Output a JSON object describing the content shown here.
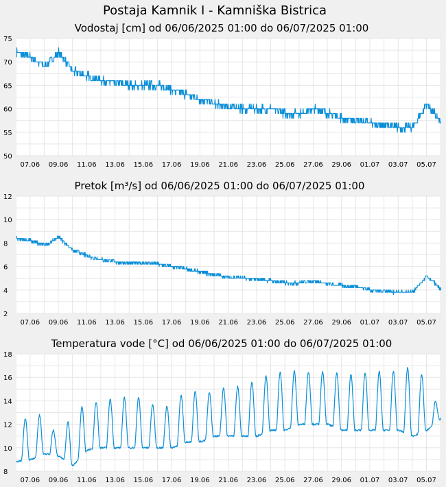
{
  "title": "Postaja Kamnik I - Kamniška Bistrica",
  "colors": {
    "background": "#f0f0f0",
    "plot_bg": "#ffffff",
    "line": "#0a8ed8",
    "grid": "#e6e6e6"
  },
  "chart_data": [
    {
      "type": "line",
      "title": "Vodostaj [cm] od 06/06/2025 01:00 do 06/07/2025 01:00",
      "x_tick_labels": [
        "07.06",
        "09.06",
        "11.06",
        "13.06",
        "15.06",
        "17.06",
        "19.06",
        "21.06",
        "23.06",
        "25.06",
        "27.06",
        "29.06",
        "01.07",
        "03.07",
        "05.07"
      ],
      "x": [
        "06.06",
        "07.06",
        "08.06",
        "09.06",
        "10.06",
        "11.06",
        "12.06",
        "13.06",
        "14.06",
        "15.06",
        "16.06",
        "17.06",
        "18.06",
        "19.06",
        "20.06",
        "21.06",
        "22.06",
        "23.06",
        "24.06",
        "25.06",
        "26.06",
        "27.06",
        "28.06",
        "29.06",
        "30.06",
        "01.07",
        "02.07",
        "03.07",
        "04.07",
        "05.07",
        "06.07"
      ],
      "values": [
        72,
        71,
        69,
        72,
        68,
        67,
        66,
        65.5,
        65,
        65,
        65,
        64,
        63,
        62,
        61,
        60.5,
        60,
        60,
        60,
        59,
        59,
        60,
        59,
        58,
        57.5,
        57,
        56.5,
        56,
        56,
        61,
        57
      ],
      "yticks": [
        50,
        55,
        60,
        65,
        70,
        75
      ],
      "ylim": [
        50,
        75
      ],
      "grid": true
    },
    {
      "type": "line",
      "title": "Pretok [m³/s] od 06/06/2025 01:00 do 06/07/2025 01:00",
      "x_tick_labels": [
        "07.06",
        "09.06",
        "11.06",
        "13.06",
        "15.06",
        "17.06",
        "19.06",
        "21.06",
        "23.06",
        "25.06",
        "27.06",
        "29.06",
        "01.07",
        "03.07",
        "05.07"
      ],
      "x": [
        "06.06",
        "07.06",
        "08.06",
        "09.06",
        "10.06",
        "11.06",
        "12.06",
        "13.06",
        "14.06",
        "15.06",
        "16.06",
        "17.06",
        "18.06",
        "19.06",
        "20.06",
        "21.06",
        "22.06",
        "23.06",
        "24.06",
        "25.06",
        "26.06",
        "27.06",
        "28.06",
        "29.06",
        "30.06",
        "01.07",
        "02.07",
        "03.07",
        "04.07",
        "05.07",
        "06.07"
      ],
      "values": [
        8.4,
        8.2,
        7.8,
        8.5,
        7.4,
        6.9,
        6.6,
        6.4,
        6.3,
        6.3,
        6.2,
        6.0,
        5.8,
        5.5,
        5.3,
        5.1,
        5.0,
        4.9,
        4.8,
        4.6,
        4.6,
        4.8,
        4.5,
        4.4,
        4.3,
        4.0,
        3.9,
        3.8,
        3.8,
        5.2,
        4.0
      ],
      "yticks": [
        2,
        4,
        6,
        8,
        10,
        12
      ],
      "ylim": [
        2,
        12
      ],
      "grid": true
    },
    {
      "type": "line",
      "title": "Temperatura vode [°C] od 06/06/2025 01:00 do 06/07/2025 01:00",
      "x_tick_labels": [
        "07.06",
        "09.06",
        "11.06",
        "13.06",
        "15.06",
        "17.06",
        "19.06",
        "21.06",
        "23.06",
        "25.06",
        "27.06",
        "29.06",
        "01.07",
        "03.07",
        "05.07"
      ],
      "x": [
        "06.06",
        "07.06",
        "08.06",
        "09.06",
        "10.06",
        "11.06",
        "12.06",
        "13.06",
        "14.06",
        "15.06",
        "16.06",
        "17.06",
        "18.06",
        "19.06",
        "20.06",
        "21.06",
        "22.06",
        "23.06",
        "24.06",
        "25.06",
        "26.06",
        "27.06",
        "28.06",
        "29.06",
        "30.06",
        "01.07",
        "02.07",
        "03.07",
        "04.07",
        "05.07",
        "06.07"
      ],
      "daily_min": [
        8.8,
        9.0,
        9.5,
        9.3,
        8.5,
        9.8,
        10.0,
        10.0,
        10.0,
        10.0,
        10.0,
        10.0,
        10.5,
        10.5,
        11.0,
        11.0,
        11.0,
        11.0,
        11.5,
        11.5,
        12.0,
        12.0,
        12.0,
        11.5,
        11.5,
        11.5,
        11.5,
        11.5,
        11.0,
        11.5,
        12.5
      ],
      "daily_max": [
        12.3,
        12.6,
        12.9,
        10.6,
        13.1,
        13.7,
        14.0,
        14.2,
        14.3,
        14.3,
        13.3,
        13.7,
        14.9,
        14.7,
        14.8,
        15.2,
        15.2,
        15.9,
        16.2,
        16.6,
        16.5,
        16.4,
        16.5,
        16.3,
        16.2,
        16.5,
        16.5,
        16.5,
        17.0,
        15.8,
        12.8
      ],
      "yticks": [
        8,
        10,
        12,
        14,
        16,
        18
      ],
      "ylim": [
        8,
        18
      ],
      "grid": true
    }
  ]
}
